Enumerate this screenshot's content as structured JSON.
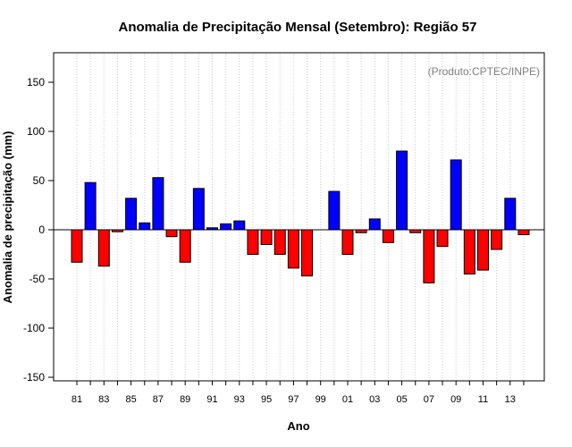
{
  "chart_data": {
    "type": "bar",
    "title": "Anomalia de Precipitação Mensal (Setembro): Região 57",
    "xlabel": "Ano",
    "ylabel": "Anomalia de precipitação (mm)",
    "annotation": "(Produto:CPTEC/INPE)",
    "ylim": [
      -155,
      180
    ],
    "y_ticks": [
      -150,
      -100,
      -50,
      0,
      50,
      100,
      150
    ],
    "grid": "vertical-dotted",
    "colors": {
      "positive": "#0000ff",
      "negative": "#ff0000",
      "grid": "#c8c8c8",
      "annotation": "#808080"
    },
    "categories": [
      "81",
      "82",
      "83",
      "84",
      "85",
      "86",
      "87",
      "88",
      "89",
      "90",
      "91",
      "92",
      "93",
      "94",
      "95",
      "96",
      "97",
      "98",
      "99",
      "00",
      "01",
      "02",
      "03",
      "04",
      "05",
      "06",
      "07",
      "08",
      "09",
      "10",
      "11",
      "12",
      "13",
      "14"
    ],
    "x_tick_labels": [
      "81",
      "83",
      "85",
      "87",
      "89",
      "91",
      "93",
      "95",
      "97",
      "99",
      "01",
      "03",
      "05",
      "07",
      "09",
      "11",
      "13"
    ],
    "values": [
      -33,
      48,
      -37,
      -2,
      32,
      7,
      53,
      -7,
      -33,
      42,
      2,
      6,
      9,
      -25,
      -15,
      -25,
      -39,
      -47,
      0,
      39,
      -25,
      -3,
      11,
      -13,
      80,
      -3,
      -54,
      -17,
      71,
      -45,
      -41,
      -20,
      32,
      -5
    ]
  }
}
